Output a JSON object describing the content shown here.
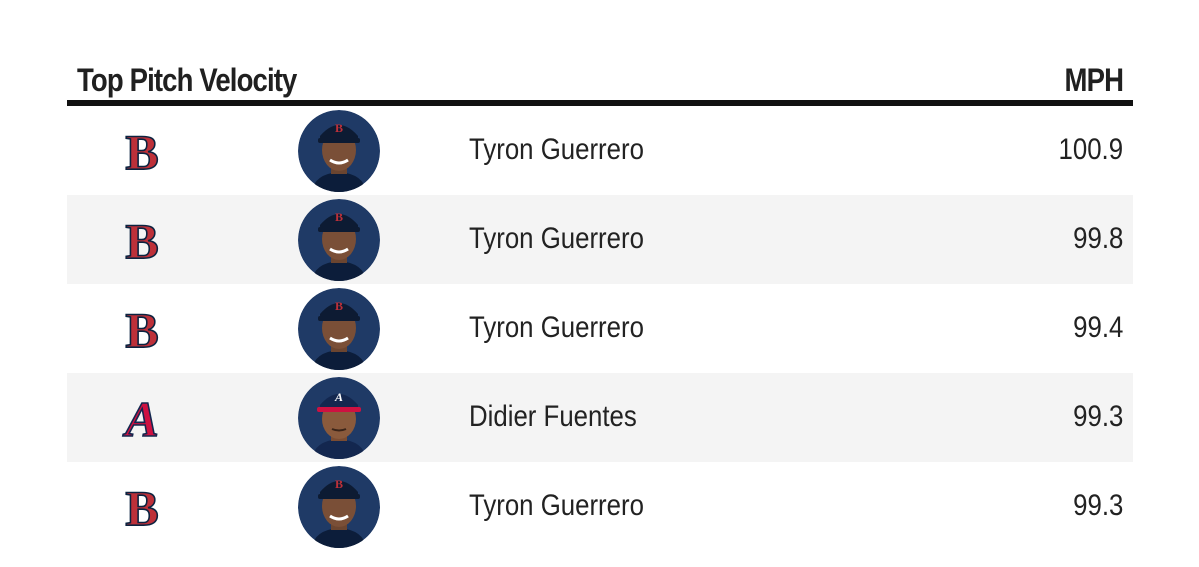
{
  "header": {
    "title": "Top Pitch Velocity",
    "unit": "MPH"
  },
  "colors": {
    "header_rule": "#111111",
    "alt_row_bg": "#f4f4f4",
    "red_sox_red": "#bd3039",
    "red_sox_navy": "#0c2340",
    "braves_red": "#ce1141",
    "braves_navy": "#13274f"
  },
  "rows": [
    {
      "team_icon": "red-sox-b-logo",
      "player_icon": "headshot",
      "player": "Tyron Guerrero",
      "mph": "100.9"
    },
    {
      "team_icon": "red-sox-b-logo",
      "player_icon": "headshot",
      "player": "Tyron Guerrero",
      "mph": "99.8"
    },
    {
      "team_icon": "red-sox-b-logo",
      "player_icon": "headshot",
      "player": "Tyron Guerrero",
      "mph": "99.4"
    },
    {
      "team_icon": "braves-a-logo",
      "player_icon": "headshot",
      "player": "Didier Fuentes",
      "mph": "99.3"
    },
    {
      "team_icon": "red-sox-b-logo",
      "player_icon": "headshot",
      "player": "Tyron Guerrero",
      "mph": "99.3"
    }
  ]
}
